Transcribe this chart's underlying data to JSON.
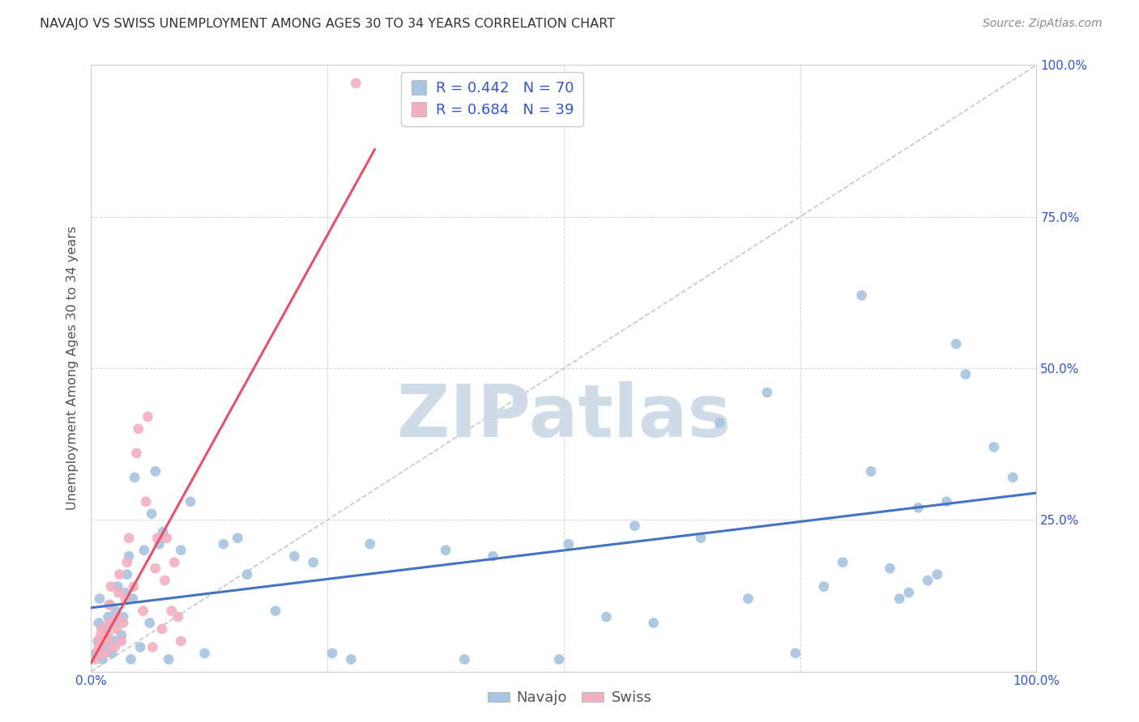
{
  "title": "NAVAJO VS SWISS UNEMPLOYMENT AMONG AGES 30 TO 34 YEARS CORRELATION CHART",
  "source": "Source: ZipAtlas.com",
  "ylabel": "Unemployment Among Ages 30 to 34 years",
  "xlim": [
    0,
    1
  ],
  "ylim": [
    0,
    1
  ],
  "x_ticks": [
    0,
    0.25,
    0.5,
    0.75,
    1.0
  ],
  "y_ticks": [
    0,
    0.25,
    0.5,
    0.75,
    1.0
  ],
  "x_tick_labels_bottom": [
    "0.0%",
    "",
    "",
    "",
    "100.0%"
  ],
  "y_tick_labels_right": [
    "",
    "25.0%",
    "50.0%",
    "75.0%",
    "100.0%"
  ],
  "navajo_color": "#a8c4e0",
  "swiss_color": "#f2afc0",
  "navajo_line_color": "#4472c4",
  "swiss_line_color": "#e8506a",
  "diagonal_color": "#c8c8c8",
  "watermark_color": "#cfdce8",
  "legend_text_color": "#3355cc",
  "navajo_R": 0.442,
  "navajo_N": 70,
  "swiss_R": 0.684,
  "swiss_N": 39,
  "navajo_points": [
    [
      0.005,
      0.03
    ],
    [
      0.007,
      0.05
    ],
    [
      0.008,
      0.08
    ],
    [
      0.009,
      0.12
    ],
    [
      0.012,
      0.02
    ],
    [
      0.015,
      0.04
    ],
    [
      0.016,
      0.07
    ],
    [
      0.018,
      0.09
    ],
    [
      0.019,
      0.11
    ],
    [
      0.022,
      0.03
    ],
    [
      0.024,
      0.05
    ],
    [
      0.025,
      0.08
    ],
    [
      0.026,
      0.1
    ],
    [
      0.028,
      0.14
    ],
    [
      0.032,
      0.06
    ],
    [
      0.034,
      0.09
    ],
    [
      0.036,
      0.13
    ],
    [
      0.038,
      0.16
    ],
    [
      0.04,
      0.19
    ],
    [
      0.042,
      0.02
    ],
    [
      0.044,
      0.12
    ],
    [
      0.046,
      0.32
    ],
    [
      0.052,
      0.04
    ],
    [
      0.056,
      0.2
    ],
    [
      0.062,
      0.08
    ],
    [
      0.064,
      0.26
    ],
    [
      0.068,
      0.33
    ],
    [
      0.072,
      0.21
    ],
    [
      0.076,
      0.23
    ],
    [
      0.082,
      0.02
    ],
    [
      0.095,
      0.2
    ],
    [
      0.105,
      0.28
    ],
    [
      0.12,
      0.03
    ],
    [
      0.14,
      0.21
    ],
    [
      0.155,
      0.22
    ],
    [
      0.165,
      0.16
    ],
    [
      0.195,
      0.1
    ],
    [
      0.215,
      0.19
    ],
    [
      0.235,
      0.18
    ],
    [
      0.255,
      0.03
    ],
    [
      0.275,
      0.02
    ],
    [
      0.295,
      0.21
    ],
    [
      0.375,
      0.2
    ],
    [
      0.395,
      0.02
    ],
    [
      0.425,
      0.19
    ],
    [
      0.495,
      0.02
    ],
    [
      0.505,
      0.21
    ],
    [
      0.545,
      0.09
    ],
    [
      0.575,
      0.24
    ],
    [
      0.595,
      0.08
    ],
    [
      0.645,
      0.22
    ],
    [
      0.665,
      0.41
    ],
    [
      0.695,
      0.12
    ],
    [
      0.715,
      0.46
    ],
    [
      0.745,
      0.03
    ],
    [
      0.775,
      0.14
    ],
    [
      0.795,
      0.18
    ],
    [
      0.815,
      0.62
    ],
    [
      0.825,
      0.33
    ],
    [
      0.845,
      0.17
    ],
    [
      0.855,
      0.12
    ],
    [
      0.865,
      0.13
    ],
    [
      0.875,
      0.27
    ],
    [
      0.885,
      0.15
    ],
    [
      0.895,
      0.16
    ],
    [
      0.905,
      0.28
    ],
    [
      0.915,
      0.54
    ],
    [
      0.925,
      0.49
    ],
    [
      0.955,
      0.37
    ],
    [
      0.975,
      0.32
    ]
  ],
  "swiss_points": [
    [
      0.005,
      0.02
    ],
    [
      0.007,
      0.03
    ],
    [
      0.008,
      0.04
    ],
    [
      0.009,
      0.05
    ],
    [
      0.01,
      0.06
    ],
    [
      0.011,
      0.07
    ],
    [
      0.015,
      0.03
    ],
    [
      0.017,
      0.05
    ],
    [
      0.018,
      0.06
    ],
    [
      0.019,
      0.08
    ],
    [
      0.02,
      0.11
    ],
    [
      0.021,
      0.14
    ],
    [
      0.025,
      0.04
    ],
    [
      0.027,
      0.07
    ],
    [
      0.028,
      0.09
    ],
    [
      0.029,
      0.13
    ],
    [
      0.03,
      0.16
    ],
    [
      0.032,
      0.05
    ],
    [
      0.034,
      0.08
    ],
    [
      0.036,
      0.12
    ],
    [
      0.038,
      0.18
    ],
    [
      0.04,
      0.22
    ],
    [
      0.045,
      0.14
    ],
    [
      0.048,
      0.36
    ],
    [
      0.05,
      0.4
    ],
    [
      0.055,
      0.1
    ],
    [
      0.058,
      0.28
    ],
    [
      0.06,
      0.42
    ],
    [
      0.065,
      0.04
    ],
    [
      0.068,
      0.17
    ],
    [
      0.07,
      0.22
    ],
    [
      0.075,
      0.07
    ],
    [
      0.078,
      0.15
    ],
    [
      0.08,
      0.22
    ],
    [
      0.085,
      0.1
    ],
    [
      0.088,
      0.18
    ],
    [
      0.092,
      0.09
    ],
    [
      0.095,
      0.05
    ],
    [
      0.28,
      0.97
    ]
  ]
}
